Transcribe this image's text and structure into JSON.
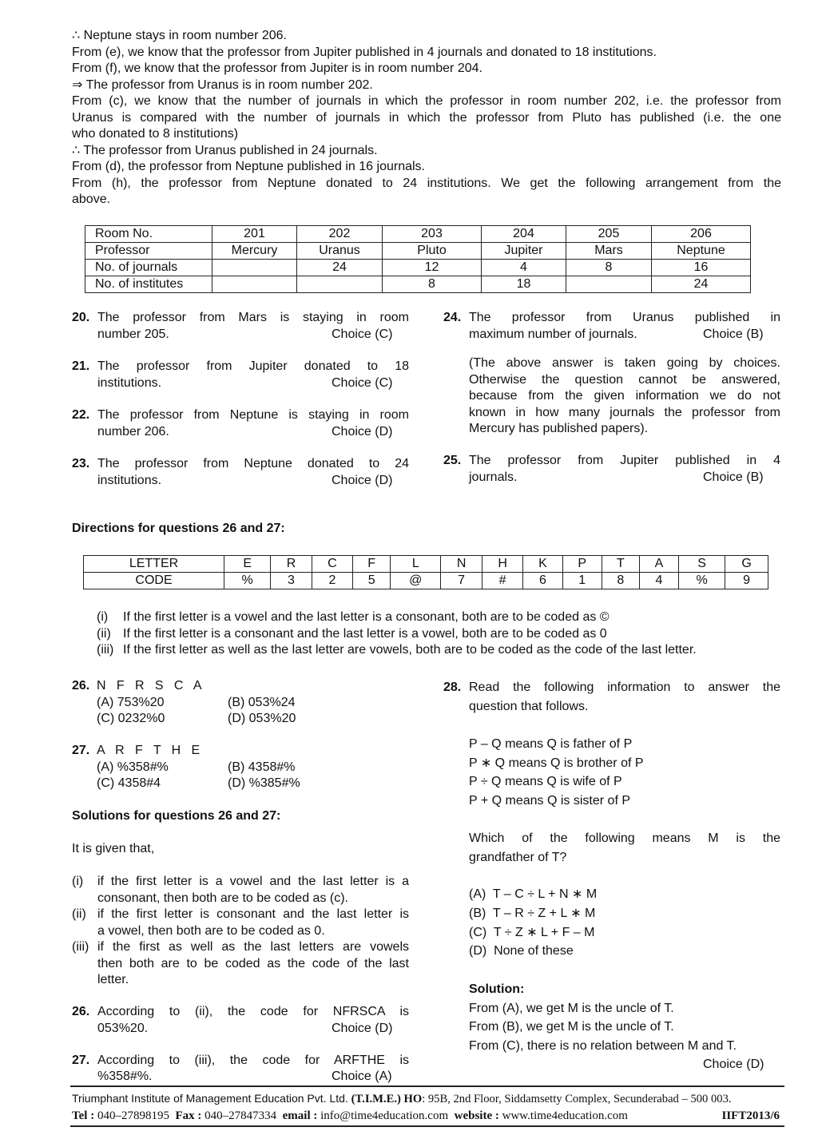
{
  "intro": [
    "∴ Neptune stays in room number 206.",
    "From (e), we know that the professor from Jupiter published in 4 journals and donated to 18 institutions.",
    "From (f), we know that the professor from Jupiter is in room number 204.",
    "⇒ The professor from Uranus is in room number 202.",
    "From (c), we know that the number of journals in which the professor in room number 202, i.e. the professor from",
    "Uranus is compared with the number of journals in which the professor from Pluto has published (i.e. the one",
    "who donated to 8 institutions)",
    "∴ The professor from Uranus published in 24 journals.",
    "From (d), the professor from Neptune published in 16 journals.",
    "From (h), the professor from Neptune donated to 24 institutions. We get the following arrangement from the",
    "above."
  ],
  "table1": {
    "rows": [
      [
        "Room No.",
        "201",
        "202",
        "203",
        "204",
        "205",
        "206"
      ],
      [
        "Professor",
        "Mercury",
        "Uranus",
        "Pluto",
        "Jupiter",
        "Mars",
        "Neptune"
      ],
      [
        "No. of journals",
        "",
        "24",
        "12",
        "4",
        "8",
        "16"
      ],
      [
        "No. of institutes",
        "",
        "",
        "8",
        "18",
        "",
        "24"
      ]
    ]
  },
  "answers_left": [
    {
      "num": "20.",
      "l1": "The professor from Mars is staying in room",
      "l2": "number 205.",
      "choice": "Choice (C)"
    },
    {
      "num": "21.",
      "l1": "The professor from Jupiter donated to 18",
      "l2": "institutions.",
      "choice": "Choice (C)"
    },
    {
      "num": "22.",
      "l1": "The professor from Neptune is staying in room",
      "l2": "number 206.",
      "choice": "Choice (D)"
    },
    {
      "num": "23.",
      "l1": "The professor from Neptune donated to 24",
      "l2": "institutions.",
      "choice": "Choice (D)"
    }
  ],
  "answer24": {
    "num": "24.",
    "l1": "The professor from Uranus published in",
    "l2": "maximum number of journals.",
    "choice": "Choice (B)",
    "note": [
      "(The above answer is taken going by choices.",
      "Otherwise the question cannot be answered,",
      "because from the given information we do not",
      "known in how many journals the professor from",
      "Mercury has published papers)."
    ]
  },
  "answer25": {
    "num": "25.",
    "l1": "The professor from Jupiter published in 4",
    "l2": "journals.",
    "choice": "Choice (B)"
  },
  "directions_heading": "Directions for questions 26 and 27:",
  "code_table": {
    "letters": [
      "LETTER",
      "E",
      "R",
      "C",
      "F",
      "L",
      "N",
      "H",
      "K",
      "P",
      "T",
      "A",
      "S",
      "G"
    ],
    "codes": [
      "CODE",
      "%",
      "3",
      "2",
      "5",
      "@",
      "7",
      "#",
      "6",
      "1",
      "8",
      "4",
      "%",
      "9"
    ]
  },
  "rules": [
    [
      "(i)",
      "If the first letter is a vowel and the last letter is a consonant, both are to be coded as ©"
    ],
    [
      "(ii)",
      "If the first letter is a consonant and the last letter is a vowel, both are to be coded as 0"
    ],
    [
      "(iii)",
      "If the first letter as well as the last letter are vowels, both are to be coded as the code of the last letter."
    ]
  ],
  "q26": {
    "num": "26.",
    "word": "N   F   R   S   C   A",
    "a": "(A) 753%20",
    "b": "(B) 053%24",
    "c": "(C) 0232%0",
    "d": "(D) 053%20"
  },
  "q27": {
    "num": "27.",
    "word": "A   R   F   T   H   E",
    "a": "(A) %358#%",
    "b": "(B) 4358#%",
    "c": "(C) 4358#4",
    "d": "(D) %385#%"
  },
  "solutions_heading": "Solutions for questions 26 and 27:",
  "given": "It is given that,",
  "sol_rules": [
    {
      "n": "(i)",
      "l1": "if the first letter is a vowel and the last letter is a",
      "l2": "consonant, then both are to be coded as (c)."
    },
    {
      "n": "(ii)",
      "l1": "if the first letter is consonant and the last letter is",
      "l2": "a vowel, then both are to be coded as 0."
    },
    {
      "n": "(iii)",
      "l1": "if the first as well as the last letters are vowels",
      "l2": "then both are to be coded as the code of the last",
      "l3": "letter."
    }
  ],
  "sol26": {
    "num": "26.",
    "l1": "According to (ii), the code for NFRSCA is",
    "l2": "053%20.",
    "choice": "Choice (D)"
  },
  "sol27": {
    "num": "27.",
    "l1": "According to (iii), the code for ARFTHE is",
    "l2": "%358#%.",
    "choice": "Choice (A)"
  },
  "q28": {
    "num": "28.",
    "l1": "Read the following information to answer the",
    "l2": "question that follows.",
    "defs": [
      "P – Q means Q is father of P",
      "P ∗ Q means Q is brother of P",
      "P ÷ Q means Q is wife of P",
      "P + Q means Q is sister of P"
    ],
    "ask1": "Which of the following means M is the",
    "ask2": "grandfather of T?",
    "opts": [
      "(A)  T – C ÷ L + N ∗ M",
      "(B)  T – R ÷ Z + L ∗ M",
      "(C)  T ÷ Z ∗ L + F – M",
      "(D)  None of these"
    ],
    "sol_heading": "Solution:",
    "sol": [
      "From (A), we get M is the uncle of T.",
      "From (B), we get M is the uncle of T.",
      "From (C), there is no relation between M and T."
    ],
    "choice": "Choice (D)"
  },
  "footer": {
    "line1a": "Triumphant Institute of Management Education Pvt. Ltd. ",
    "line1b": "(T.I.M.E.) ",
    "line1c": "HO",
    "line1d": ": 95B, 2nd Floor, Siddamsetty Complex, Secunderabad – 500 003.",
    "tel_label": "Tel :",
    "tel": " 040–27898195  ",
    "fax_label": "Fax :",
    "fax": " 040–27847334  ",
    "email_label": "email :",
    "email": " info@time4education.com  ",
    "web_label": "website :",
    "web": " www.time4education.com",
    "page": "IIFT2013/6"
  }
}
